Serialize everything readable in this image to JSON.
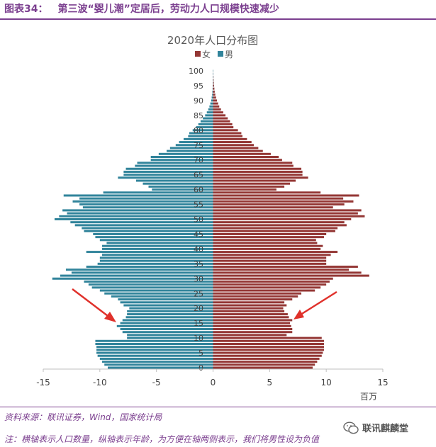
{
  "header": {
    "figure_label": "图表34：",
    "title": "第三波“婴儿潮”定居后，劳动力人口规模快速减少"
  },
  "footer": {
    "source": "资料来源：联讯证券，Wind，国家统计局",
    "note": "注：横轴表示人口数量，纵轴表示年龄，为方便在轴两侧表示，我们将男性设为负值",
    "watermark": "联讯麒麟堂"
  },
  "colors": {
    "female": "#943735",
    "male": "#31849b",
    "arrow": "#e0312b",
    "accent": "#7b3f8f",
    "axis_text": "#404040"
  },
  "chart_data": {
    "type": "bar",
    "orientation": "horizontal",
    "title": "2020年人口分布图",
    "xlabel": "百万",
    "ylabel": "",
    "xlim": [
      -15,
      15
    ],
    "ylim": [
      0,
      100
    ],
    "x_ticks": [
      -15,
      -10,
      -5,
      0,
      5,
      10,
      15
    ],
    "y_ticks": [
      0,
      5,
      10,
      15,
      20,
      25,
      30,
      35,
      40,
      45,
      50,
      55,
      60,
      65,
      70,
      75,
      80,
      85,
      90,
      95,
      100
    ],
    "legend": {
      "position": "top-center"
    },
    "grid": false,
    "categories": [
      0,
      1,
      2,
      3,
      4,
      5,
      6,
      7,
      8,
      9,
      10,
      11,
      12,
      13,
      14,
      15,
      16,
      17,
      18,
      19,
      20,
      21,
      22,
      23,
      24,
      25,
      26,
      27,
      28,
      29,
      30,
      31,
      32,
      33,
      34,
      35,
      36,
      37,
      38,
      39,
      40,
      41,
      42,
      43,
      44,
      45,
      46,
      47,
      48,
      49,
      50,
      51,
      52,
      53,
      54,
      55,
      56,
      57,
      58,
      59,
      60,
      61,
      62,
      63,
      64,
      65,
      66,
      67,
      68,
      69,
      70,
      71,
      72,
      73,
      74,
      75,
      76,
      77,
      78,
      79,
      80,
      81,
      82,
      83,
      84,
      85,
      86,
      87,
      88,
      89,
      90,
      91,
      92,
      93,
      94,
      95,
      96,
      97,
      98,
      99,
      100
    ],
    "series": [
      {
        "name": "女",
        "values": [
          8.8,
          9.0,
          9.2,
          9.4,
          9.6,
          9.7,
          9.8,
          9.8,
          9.8,
          9.8,
          9.6,
          6.5,
          7.0,
          7.0,
          6.9,
          6.8,
          7.0,
          6.7,
          6.6,
          6.3,
          6.2,
          6.5,
          6.3,
          7.0,
          7.5,
          7.8,
          9.0,
          9.5,
          10.0,
          10.3,
          10.6,
          13.8,
          13.1,
          12.0,
          12.8,
          10.0,
          10.0,
          10.0,
          10.4,
          11.0,
          9.5,
          9.7,
          9.2,
          9.1,
          9.8,
          10.0,
          10.8,
          11.0,
          11.8,
          11.6,
          12.2,
          13.4,
          12.8,
          13.1,
          10.6,
          11.6,
          12.4,
          11.5,
          12.9,
          9.5,
          5.6,
          6.3,
          6.8,
          7.3,
          8.4,
          7.9,
          7.9,
          7.8,
          7.1,
          7.0,
          6.1,
          5.8,
          5.1,
          4.4,
          4.0,
          3.6,
          3.4,
          3.0,
          2.6,
          2.5,
          2.2,
          1.8,
          1.7,
          1.5,
          1.3,
          1.1,
          0.9,
          0.7,
          0.55,
          0.45,
          0.35,
          0.27,
          0.2,
          0.15,
          0.12,
          0.09,
          0.07,
          0.05,
          0.04,
          0.03,
          0.02
        ]
      },
      {
        "name": "男",
        "values": [
          -9.3,
          -9.6,
          -9.8,
          -10.0,
          -10.2,
          -10.3,
          -10.3,
          -10.3,
          -10.4,
          -10.4,
          -7.6,
          -7.6,
          -8.0,
          -8.2,
          -8.5,
          -8.2,
          -8.0,
          -7.7,
          -7.6,
          -7.6,
          -7.4,
          -7.9,
          -8.2,
          -8.4,
          -9.0,
          -9.6,
          -10.0,
          -10.7,
          -11.0,
          -11.4,
          -14.2,
          -13.5,
          -12.5,
          -13.0,
          -11.2,
          -10.2,
          -10.0,
          -10.0,
          -9.8,
          -11.2,
          -9.8,
          -9.8,
          -9.4,
          -10.0,
          -10.4,
          -10.6,
          -11.4,
          -11.6,
          -12.2,
          -12.6,
          -14.0,
          -13.6,
          -12.9,
          -13.3,
          -11.5,
          -11.8,
          -12.4,
          -11.8,
          -13.2,
          -9.7,
          -5.4,
          -5.7,
          -6.2,
          -6.8,
          -8.4,
          -7.9,
          -7.9,
          -7.7,
          -6.9,
          -6.7,
          -5.5,
          -5.5,
          -4.8,
          -4.1,
          -3.8,
          -3.3,
          -3.0,
          -2.6,
          -2.2,
          -2.1,
          -1.8,
          -1.5,
          -1.3,
          -1.1,
          -0.9,
          -0.7,
          -0.55,
          -0.42,
          -0.32,
          -0.24,
          -0.16,
          -0.12,
          -0.08,
          -0.06,
          -0.04,
          -0.03,
          -0.02,
          -0.015,
          -0.01,
          -0.008,
          -0.005
        ]
      }
    ]
  }
}
